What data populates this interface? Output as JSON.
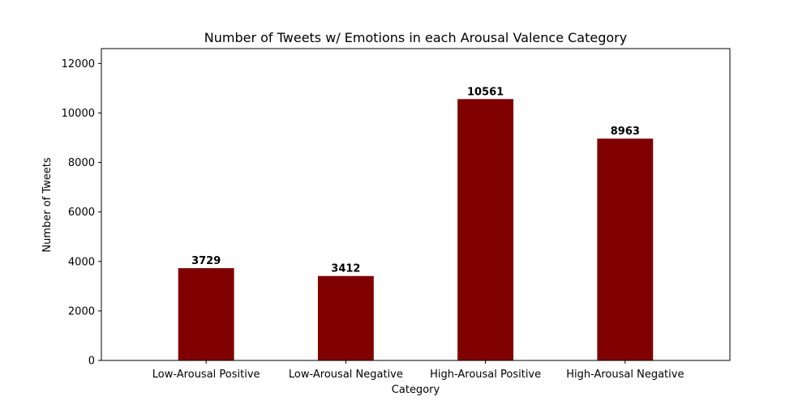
{
  "chart_data": {
    "type": "bar",
    "title": "Number of Tweets w/ Emotions in each Arousal Valence Category",
    "xlabel": "Category",
    "ylabel": "Number of Tweets",
    "categories": [
      "Low-Arousal Positive",
      "Low-Arousal Negative",
      "High-Arousal Positive",
      "High-Arousal Negative"
    ],
    "values": [
      3729,
      3412,
      10561,
      8963
    ],
    "data_labels": [
      "3729",
      "3412",
      "10561",
      "8963"
    ],
    "ylim": [
      0,
      12600
    ],
    "yticks": [
      0,
      2000,
      4000,
      6000,
      8000,
      10000,
      12000
    ],
    "ytick_labels": [
      "0",
      "2000",
      "4000",
      "6000",
      "8000",
      "10000",
      "12000"
    ],
    "bar_color": "#800000",
    "grid": false,
    "legend": "none"
  }
}
